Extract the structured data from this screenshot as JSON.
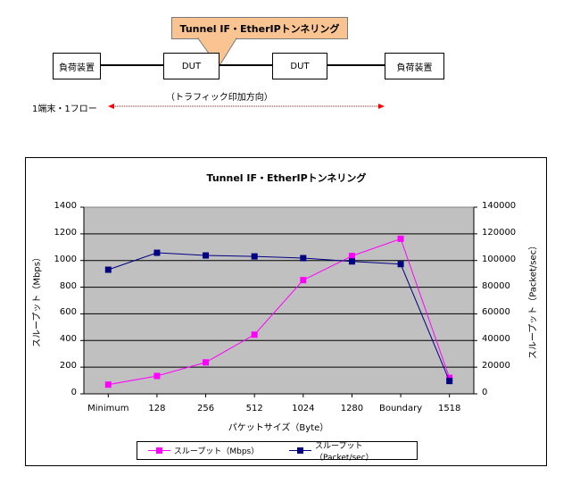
{
  "diagram": {
    "callout": "Tunnel IF・EtherIPトンネリング",
    "boxes": [
      "負荷装置",
      "DUT",
      "DUT",
      "負荷装置"
    ],
    "direction_label": "（トラフィック印加方向）",
    "flow_label": "1端末・1フロー",
    "arrow_color": "#ff0000"
  },
  "chart_data": {
    "type": "line",
    "title": "Tunnel IF・EtherIPトンネリング",
    "xlabel": "パケットサイズ（Byte）",
    "ylabel": "スループット（Mbps）",
    "y2label": "スループット（Packet/sec）",
    "categories": [
      "Minimum",
      "128",
      "256",
      "512",
      "1024",
      "1280",
      "Boundary",
      "1518"
    ],
    "ylim": [
      0,
      1400
    ],
    "y2lim": [
      0,
      140000
    ],
    "yticks": [
      "0",
      "200",
      "400",
      "600",
      "800",
      "1000",
      "1200",
      "1400"
    ],
    "y2ticks": [
      "0",
      "20000",
      "40000",
      "60000",
      "80000",
      "100000",
      "120000",
      "140000"
    ],
    "grid": true,
    "legend_position": "bottom",
    "series": [
      {
        "name": "スループット（Mbps）",
        "axis": "left",
        "color": "#ff00ff",
        "values": [
          69,
          134,
          236,
          444,
          853,
          1034,
          1163,
          120
        ]
      },
      {
        "name": "スループット（Packet/sec）",
        "axis": "right",
        "color": "#000080",
        "values": [
          93100,
          105800,
          103800,
          103100,
          101800,
          99300,
          97300,
          9600
        ]
      }
    ]
  }
}
